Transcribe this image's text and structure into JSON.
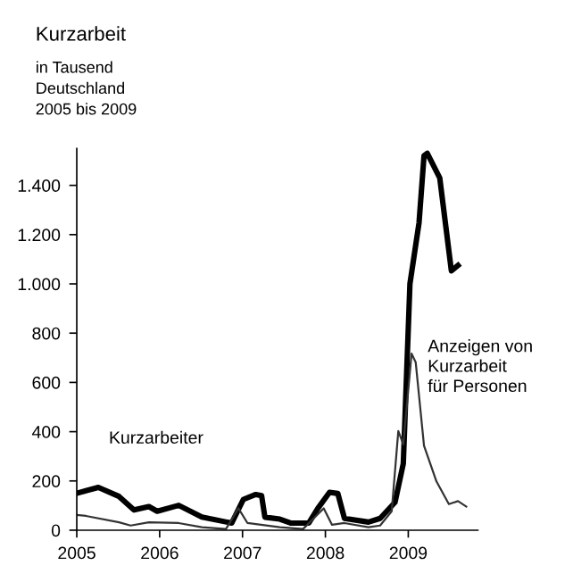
{
  "chart_data": {
    "type": "line",
    "title": "Kurzarbeit",
    "subtitle": "in Tausend\nDeutschland\n2005 bis 2009",
    "xlim": [
      2005,
      2009.84
    ],
    "xticks": [
      2005,
      2006,
      2007,
      2008,
      2009
    ],
    "ylim": [
      0,
      1550
    ],
    "yticks": [
      0,
      200,
      400,
      600,
      800,
      {
        "value": 1000,
        "label": "1.000"
      },
      {
        "value": 1200,
        "label": "1.200"
      },
      {
        "value": 1400,
        "label": "1.400"
      }
    ],
    "grid": false,
    "legend": false,
    "marker": "none",
    "line_style": "solid",
    "series": [
      {
        "name": "Kurzarbeiter",
        "color": "#000000",
        "x": [
          2005.0,
          2005.11,
          2005.26,
          2005.51,
          2005.69,
          2005.87,
          2005.97,
          2006.23,
          2006.51,
          2006.87,
          2007.01,
          2007.16,
          2007.23,
          2007.27,
          2007.45,
          2007.58,
          2007.8,
          2007.91,
          2008.05,
          2008.15,
          2008.23,
          2008.52,
          2008.66,
          2008.84,
          2008.94,
          2009.02,
          2009.13,
          2009.19,
          2009.23,
          2009.38,
          2009.52,
          2009.6
        ],
        "values": [
          150,
          160,
          174,
          137,
          82,
          96,
          77,
          101,
          53,
          29,
          125,
          145,
          140,
          53,
          45,
          29,
          29,
          89,
          154,
          149,
          48,
          33,
          48,
          113,
          270,
          1000,
          1248,
          1520,
          1530,
          1430,
          1053,
          1075
        ]
      },
      {
        "name": "Anzeigen von\nKurzarbeit\nfür Personen",
        "color": "#333333",
        "x": [
          2005.0,
          2005.11,
          2005.51,
          2005.65,
          2005.87,
          2006.23,
          2006.51,
          2006.8,
          2006.95,
          2007.06,
          2007.45,
          2007.73,
          2007.98,
          2008.08,
          2008.23,
          2008.52,
          2008.66,
          2008.8,
          2008.88,
          2008.94,
          2009.04,
          2009.09,
          2009.19,
          2009.34,
          2009.49,
          2009.6,
          2009.7
        ],
        "values": [
          62,
          58,
          32,
          19,
          32,
          29,
          12,
          5,
          89,
          29,
          12,
          5,
          89,
          22,
          29,
          12,
          19,
          77,
          403,
          348,
          717,
          681,
          343,
          198,
          106,
          118,
          96
        ]
      }
    ]
  }
}
